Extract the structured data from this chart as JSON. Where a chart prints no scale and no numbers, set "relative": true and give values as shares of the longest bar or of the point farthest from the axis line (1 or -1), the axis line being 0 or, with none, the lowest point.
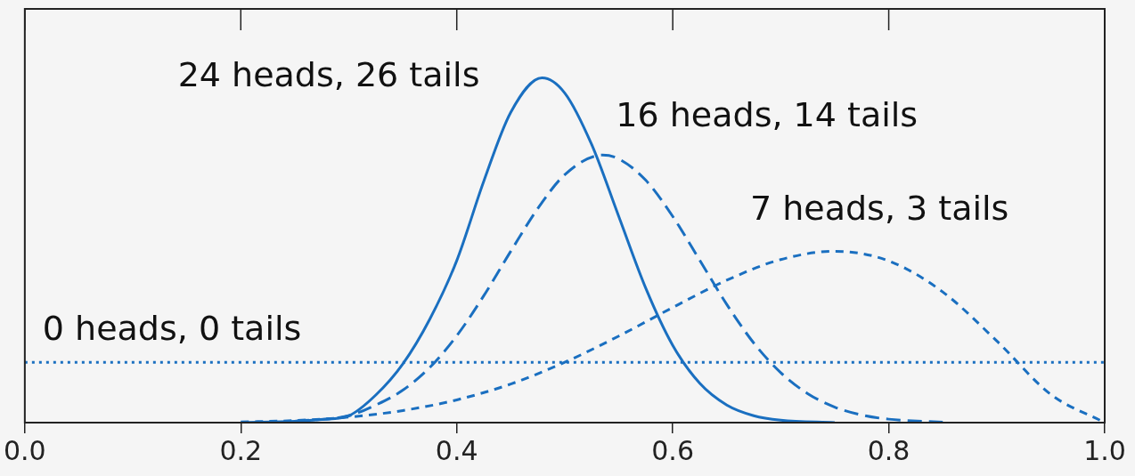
{
  "chart_data": {
    "type": "line",
    "relative": true,
    "grid": false,
    "legend": false,
    "marker": "none",
    "xlim": [
      0,
      1
    ],
    "xticks": [
      {
        "value": 0,
        "label": "0.0"
      },
      0.2,
      0.4,
      0.6,
      0.8,
      {
        "value": 1,
        "label": "1.0"
      }
    ],
    "series": [
      {
        "name": "24 heads, 26 tails",
        "color": "#1a6fc0",
        "line_style": "solid",
        "x": [
          0.2,
          0.25,
          0.275,
          0.3,
          0.325,
          0.35,
          0.375,
          0.4,
          0.425,
          0.45,
          0.479,
          0.5,
          0.525,
          0.55,
          0.575,
          0.6,
          0.625,
          0.65,
          0.675,
          0.7,
          0.75
        ],
        "values": [
          0,
          0.004,
          0.009,
          0.02,
          0.08,
          0.17,
          0.3,
          0.47,
          0.7,
          0.9,
          1,
          0.956,
          0.806,
          0.598,
          0.39,
          0.224,
          0.114,
          0.051,
          0.02,
          0.007,
          0
        ]
      },
      {
        "name": "16 heads, 14 tails",
        "color": "#1a6fc0",
        "line_style": "dashed",
        "x": [
          0.25,
          0.3,
          0.325,
          0.35,
          0.375,
          0.4,
          0.425,
          0.45,
          0.475,
          0.5,
          0.535,
          0.55,
          0.575,
          0.6,
          0.625,
          0.65,
          0.675,
          0.7,
          0.725,
          0.75,
          0.775,
          0.8,
          0.85
        ],
        "values": [
          0.004,
          0.02,
          0.051,
          0.094,
          0.16,
          0.252,
          0.368,
          0.497,
          0.621,
          0.719,
          0.776,
          0.765,
          0.703,
          0.598,
          0.471,
          0.343,
          0.231,
          0.145,
          0.084,
          0.045,
          0.022,
          0.01,
          0.001
        ]
      },
      {
        "name": "7 heads, 3 tails",
        "color": "#1a6fc0",
        "line_style": "dashed",
        "x": [
          0.2,
          0.25,
          0.3,
          0.35,
          0.4,
          0.45,
          0.5,
          0.55,
          0.6,
          0.65,
          0.7,
          0.75,
          0.8,
          0.85,
          0.9,
          0.95,
          1
        ],
        "values": [
          0.002,
          0.006,
          0.016,
          0.035,
          0.066,
          0.112,
          0.175,
          0.251,
          0.334,
          0.413,
          0.473,
          0.497,
          0.469,
          0.379,
          0.237,
          0.082,
          0
        ]
      },
      {
        "name": "0 heads, 0 tails",
        "color": "#1a6fc0",
        "line_style": "dotted",
        "x": [
          0,
          1
        ],
        "values": [
          0.175,
          0.175
        ]
      }
    ]
  }
}
